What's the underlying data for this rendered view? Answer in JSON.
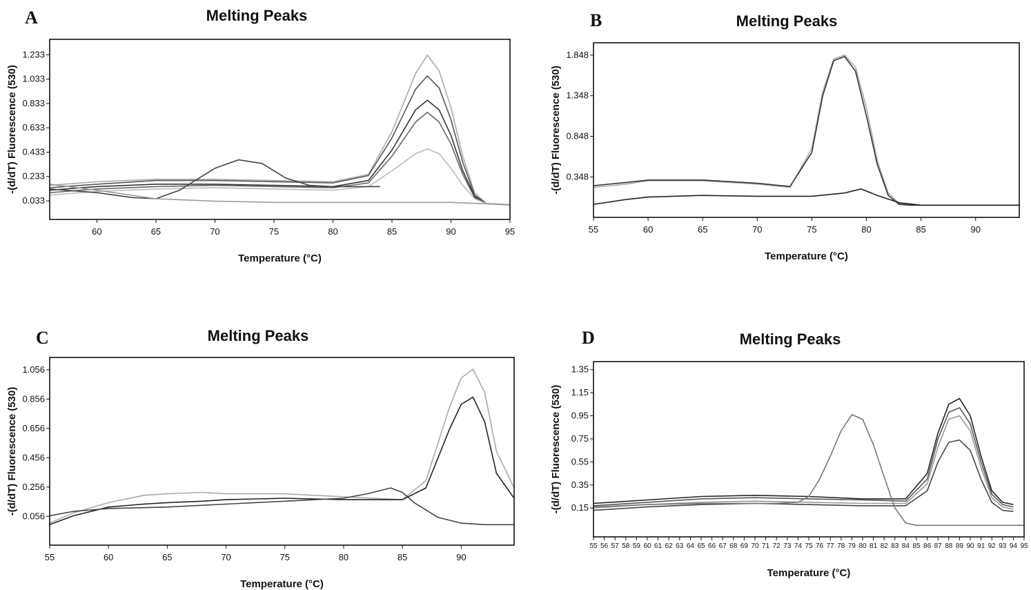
{
  "chart_data": [
    {
      "panel": "A",
      "type": "line",
      "title": "Melting Peaks",
      "xlabel": "Temperature (°C)",
      "ylabel": "-(d/dT) Fluorescence (530)",
      "xlim": [
        56,
        95
      ],
      "ylim": [
        -0.12,
        1.36
      ],
      "x_ticks": [
        60,
        65,
        70,
        75,
        80,
        85,
        90,
        95
      ],
      "y_ticks": [
        1.233,
        1.033,
        0.833,
        0.633,
        0.433,
        0.233,
        0.033
      ],
      "y_tick_labels": [
        "1.233",
        "1.033",
        "0.833",
        "0.633",
        "0.433",
        "0.233",
        "0.033"
      ],
      "series": [
        {
          "color": "#aaaaaa",
          "x": [
            56,
            60,
            65,
            70,
            75,
            80,
            83,
            85,
            87,
            88,
            89,
            90,
            91,
            92,
            93,
            95
          ],
          "y": [
            0.16,
            0.19,
            0.21,
            0.21,
            0.2,
            0.19,
            0.25,
            0.6,
            1.08,
            1.23,
            1.1,
            0.8,
            0.4,
            0.1,
            0.01,
            0.0
          ]
        },
        {
          "color": "#555555",
          "x": [
            56,
            60,
            65,
            70,
            75,
            80,
            83,
            85,
            87,
            88,
            89,
            90,
            91,
            92,
            93,
            95
          ],
          "y": [
            0.14,
            0.17,
            0.2,
            0.2,
            0.19,
            0.18,
            0.24,
            0.55,
            0.95,
            1.06,
            0.96,
            0.7,
            0.35,
            0.08,
            0.01,
            0.0
          ]
        },
        {
          "color": "#333333",
          "x": [
            56,
            60,
            65,
            70,
            75,
            80,
            83,
            85,
            87,
            88,
            89,
            90,
            91,
            92,
            93,
            95
          ],
          "y": [
            0.12,
            0.15,
            0.17,
            0.17,
            0.16,
            0.15,
            0.2,
            0.45,
            0.78,
            0.86,
            0.78,
            0.57,
            0.28,
            0.07,
            0.01,
            0.0
          ]
        },
        {
          "color": "#666666",
          "x": [
            56,
            60,
            65,
            70,
            75,
            80,
            83,
            85,
            87,
            88,
            89,
            90,
            91,
            92,
            93,
            95
          ],
          "y": [
            0.1,
            0.13,
            0.15,
            0.16,
            0.15,
            0.14,
            0.18,
            0.4,
            0.68,
            0.76,
            0.68,
            0.5,
            0.25,
            0.06,
            0.01,
            0.0
          ]
        },
        {
          "color": "#bbbbbb",
          "x": [
            56,
            60,
            65,
            70,
            75,
            80,
            83,
            85,
            87,
            88,
            89,
            90,
            91,
            92,
            93,
            95
          ],
          "y": [
            0.08,
            0.11,
            0.13,
            0.14,
            0.13,
            0.12,
            0.15,
            0.28,
            0.42,
            0.46,
            0.42,
            0.3,
            0.16,
            0.05,
            0.01,
            0.0
          ]
        },
        {
          "color": "#444444",
          "x": [
            56,
            60,
            63,
            65,
            67,
            70,
            72,
            74,
            76,
            78,
            80,
            82,
            84
          ],
          "y": [
            0.13,
            0.1,
            0.06,
            0.05,
            0.12,
            0.3,
            0.37,
            0.34,
            0.22,
            0.16,
            0.15,
            0.15,
            0.15
          ]
        },
        {
          "color": "#999999",
          "x": [
            56,
            60,
            65,
            70,
            75,
            80,
            85,
            90,
            95
          ],
          "y": [
            0.17,
            0.12,
            0.05,
            0.03,
            0.02,
            0.02,
            0.02,
            0.02,
            0.0
          ]
        }
      ]
    },
    {
      "panel": "B",
      "type": "line",
      "title": "Melting Peaks",
      "xlabel": "Temperature (°C)",
      "ylabel": "-(d/dT) Fluorescence (530)",
      "xlim": [
        55,
        94
      ],
      "ylim": [
        -0.15,
        2.0
      ],
      "x_ticks": [
        55,
        60,
        65,
        70,
        75,
        80,
        85,
        90
      ],
      "y_ticks": [
        1.848,
        1.348,
        0.848,
        0.348
      ],
      "y_tick_labels": [
        "1.848",
        "1.348",
        "0.848",
        "0.348"
      ],
      "series": [
        {
          "color": "#aaaaaa",
          "x": [
            55,
            58,
            60,
            65,
            70,
            73,
            75,
            76,
            77,
            78,
            79,
            80,
            81,
            82,
            83,
            84,
            85,
            94
          ],
          "y": [
            0.22,
            0.26,
            0.3,
            0.3,
            0.26,
            0.22,
            0.7,
            1.4,
            1.8,
            1.85,
            1.7,
            1.2,
            0.55,
            0.15,
            0.02,
            0.0,
            0.0,
            0.0
          ]
        },
        {
          "color": "#333333",
          "x": [
            55,
            58,
            60,
            65,
            70,
            73,
            75,
            76,
            77,
            78,
            79,
            80,
            81,
            82,
            83,
            84,
            85,
            94
          ],
          "y": [
            0.24,
            0.28,
            0.31,
            0.31,
            0.27,
            0.23,
            0.65,
            1.35,
            1.78,
            1.83,
            1.65,
            1.1,
            0.5,
            0.12,
            0.01,
            0.0,
            0.0,
            0.0
          ]
        },
        {
          "color": "#222222",
          "x": [
            55,
            58,
            60,
            65,
            70,
            75,
            78,
            79.5,
            81,
            83,
            85,
            94
          ],
          "y": [
            0.01,
            0.07,
            0.1,
            0.12,
            0.11,
            0.11,
            0.15,
            0.2,
            0.12,
            0.03,
            0.0,
            0.0
          ]
        }
      ]
    },
    {
      "panel": "C",
      "type": "line",
      "title": "Melting Peaks",
      "xlabel": "Temperature (°C)",
      "ylabel": "-(d/dT) Fluorescence (530)",
      "xlim": [
        55,
        94.5
      ],
      "ylim": [
        -0.14,
        1.14
      ],
      "x_ticks": [
        55,
        60,
        65,
        70,
        75,
        80,
        85,
        90
      ],
      "y_ticks": [
        1.056,
        0.856,
        0.656,
        0.456,
        0.256,
        0.056
      ],
      "y_tick_labels": [
        "1.056",
        "0.856",
        "0.656",
        "0.456",
        "0.256",
        "0.056"
      ],
      "series": [
        {
          "color": "#aaaaaa",
          "x": [
            55,
            57,
            60,
            63,
            65,
            68,
            70,
            75,
            80,
            85,
            87,
            88,
            89,
            90,
            91,
            92,
            93,
            94.5
          ],
          "y": [
            0.01,
            0.08,
            0.15,
            0.2,
            0.21,
            0.22,
            0.21,
            0.21,
            0.19,
            0.17,
            0.3,
            0.55,
            0.8,
            1.0,
            1.06,
            0.9,
            0.5,
            0.25
          ]
        },
        {
          "color": "#222222",
          "x": [
            55,
            57,
            60,
            63,
            65,
            68,
            70,
            75,
            80,
            85,
            87,
            88,
            89,
            90,
            91,
            92,
            93,
            94.5
          ],
          "y": [
            0.0,
            0.06,
            0.12,
            0.14,
            0.15,
            0.16,
            0.17,
            0.18,
            0.17,
            0.17,
            0.25,
            0.45,
            0.65,
            0.82,
            0.87,
            0.7,
            0.35,
            0.18
          ]
        },
        {
          "color": "#444444",
          "x": [
            55,
            57,
            60,
            65,
            70,
            75,
            80,
            82,
            84,
            85,
            86,
            88,
            90,
            92,
            94.5
          ],
          "y": [
            0.06,
            0.09,
            0.11,
            0.12,
            0.14,
            0.16,
            0.18,
            0.21,
            0.25,
            0.22,
            0.15,
            0.05,
            0.01,
            0.0,
            0.0
          ]
        }
      ]
    },
    {
      "panel": "D",
      "type": "line",
      "title": "Melting Peaks",
      "xlabel": "Temperature (°C)",
      "ylabel": "-(d/dT) Fluorescence (530)",
      "xlim": [
        55,
        95
      ],
      "ylim": [
        -0.1,
        1.42
      ],
      "x_ticks": [
        55,
        56,
        57,
        58,
        59,
        60,
        61,
        62,
        63,
        64,
        65,
        66,
        67,
        68,
        69,
        70,
        71,
        72,
        73,
        74,
        75,
        76,
        77,
        78,
        79,
        80,
        81,
        82,
        83,
        84,
        85,
        86,
        87,
        88,
        89,
        90,
        91,
        92,
        93,
        94,
        95
      ],
      "y_ticks": [
        1.35,
        1.15,
        0.95,
        0.75,
        0.55,
        0.35,
        0.15
      ],
      "y_tick_labels": [
        "1.35",
        "1.15",
        "0.95",
        "0.75",
        "0.55",
        "0.35",
        "0.15"
      ],
      "series": [
        {
          "color": "#222222",
          "x": [
            55,
            60,
            65,
            70,
            75,
            80,
            84,
            86,
            87,
            88,
            89,
            90,
            91,
            92,
            93,
            94
          ],
          "y": [
            0.19,
            0.22,
            0.25,
            0.26,
            0.25,
            0.23,
            0.23,
            0.45,
            0.8,
            1.05,
            1.1,
            0.95,
            0.6,
            0.3,
            0.2,
            0.18
          ]
        },
        {
          "color": "#555555",
          "x": [
            55,
            60,
            65,
            70,
            75,
            80,
            84,
            86,
            87,
            88,
            89,
            90,
            91,
            92,
            93,
            94
          ],
          "y": [
            0.17,
            0.2,
            0.23,
            0.24,
            0.23,
            0.22,
            0.21,
            0.4,
            0.75,
            0.98,
            1.02,
            0.88,
            0.55,
            0.27,
            0.18,
            0.16
          ]
        },
        {
          "color": "#999999",
          "x": [
            55,
            60,
            65,
            70,
            75,
            80,
            84,
            86,
            87,
            88,
            89,
            90,
            91,
            92,
            93,
            94
          ],
          "y": [
            0.15,
            0.18,
            0.2,
            0.21,
            0.2,
            0.19,
            0.19,
            0.36,
            0.68,
            0.92,
            0.95,
            0.82,
            0.5,
            0.24,
            0.16,
            0.14
          ]
        },
        {
          "color": "#444444",
          "x": [
            55,
            60,
            65,
            70,
            75,
            80,
            84,
            86,
            87,
            88,
            89,
            90,
            91,
            92,
            93,
            94
          ],
          "y": [
            0.13,
            0.16,
            0.18,
            0.19,
            0.18,
            0.17,
            0.17,
            0.3,
            0.55,
            0.72,
            0.74,
            0.65,
            0.4,
            0.2,
            0.13,
            0.12
          ]
        },
        {
          "color": "#777777",
          "x": [
            55,
            60,
            65,
            70,
            72,
            74,
            75,
            76,
            77,
            78,
            79,
            80,
            81,
            82,
            83,
            84,
            85,
            88,
            95
          ],
          "y": [
            0.16,
            0.18,
            0.19,
            0.19,
            0.19,
            0.2,
            0.25,
            0.4,
            0.6,
            0.82,
            0.96,
            0.92,
            0.7,
            0.42,
            0.15,
            0.02,
            0.0,
            0.0,
            0.0
          ]
        }
      ]
    }
  ]
}
